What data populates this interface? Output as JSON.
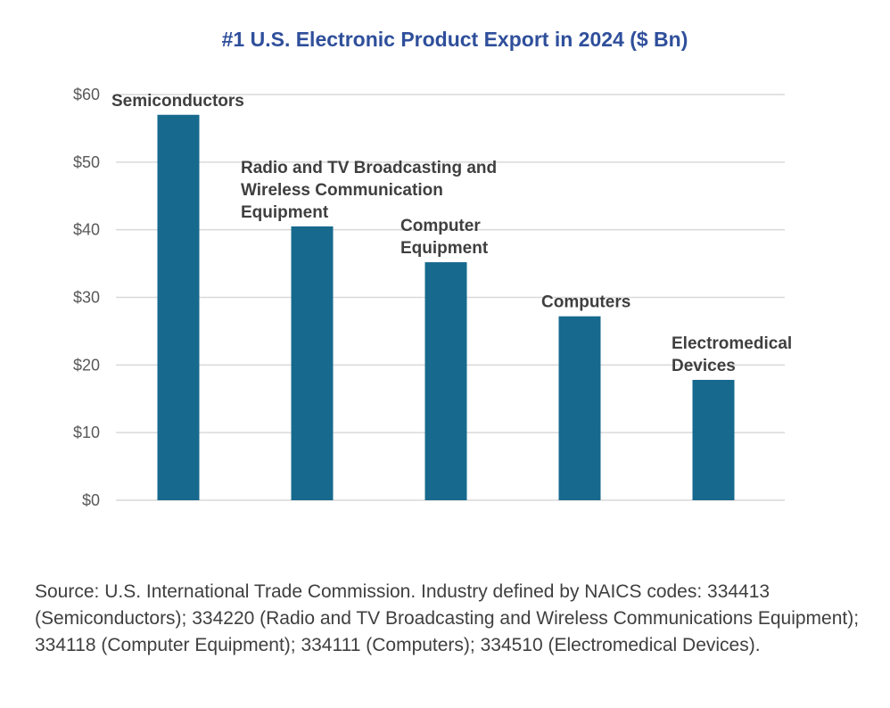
{
  "chart_data": {
    "type": "bar",
    "title": "#1 U.S. Electronic Product Export in 2024 ($ Bn)",
    "xlabel": "",
    "ylabel": "",
    "categories": [
      "Semiconductors",
      "Radio and TV Broadcasting and Wireless Communication Equipment",
      "Computer Equipment",
      "Computers",
      "Electromedical Devices"
    ],
    "category_label_lines": [
      [
        "Semiconductors"
      ],
      [
        "Radio and TV Broadcasting and",
        "Wireless Communication",
        "Equipment"
      ],
      [
        "Computer",
        "Equipment"
      ],
      [
        "Computers"
      ],
      [
        "Electromedical",
        "Devices"
      ]
    ],
    "values": [
      57,
      40.5,
      35.2,
      27.2,
      17.8
    ],
    "ylim": [
      0,
      60
    ],
    "yticks": [
      0,
      10,
      20,
      30,
      40,
      50,
      60
    ],
    "ytick_labels": [
      "$0",
      "$10",
      "$20",
      "$30",
      "$40",
      "$50",
      "$60"
    ],
    "grid": true,
    "legend": "none",
    "bar_color": "#17698e",
    "gridline_color": "#d9d9d9"
  },
  "source_note": "Source: U.S. International Trade Commission. Industry defined by NAICS codes: 334413 (Semiconductors); 334220 (Radio and TV Broadcasting and Wireless Communications Equipment); 334118 (Computer Equipment); 334111 (Computers); 334510 (Electromedical Devices)."
}
